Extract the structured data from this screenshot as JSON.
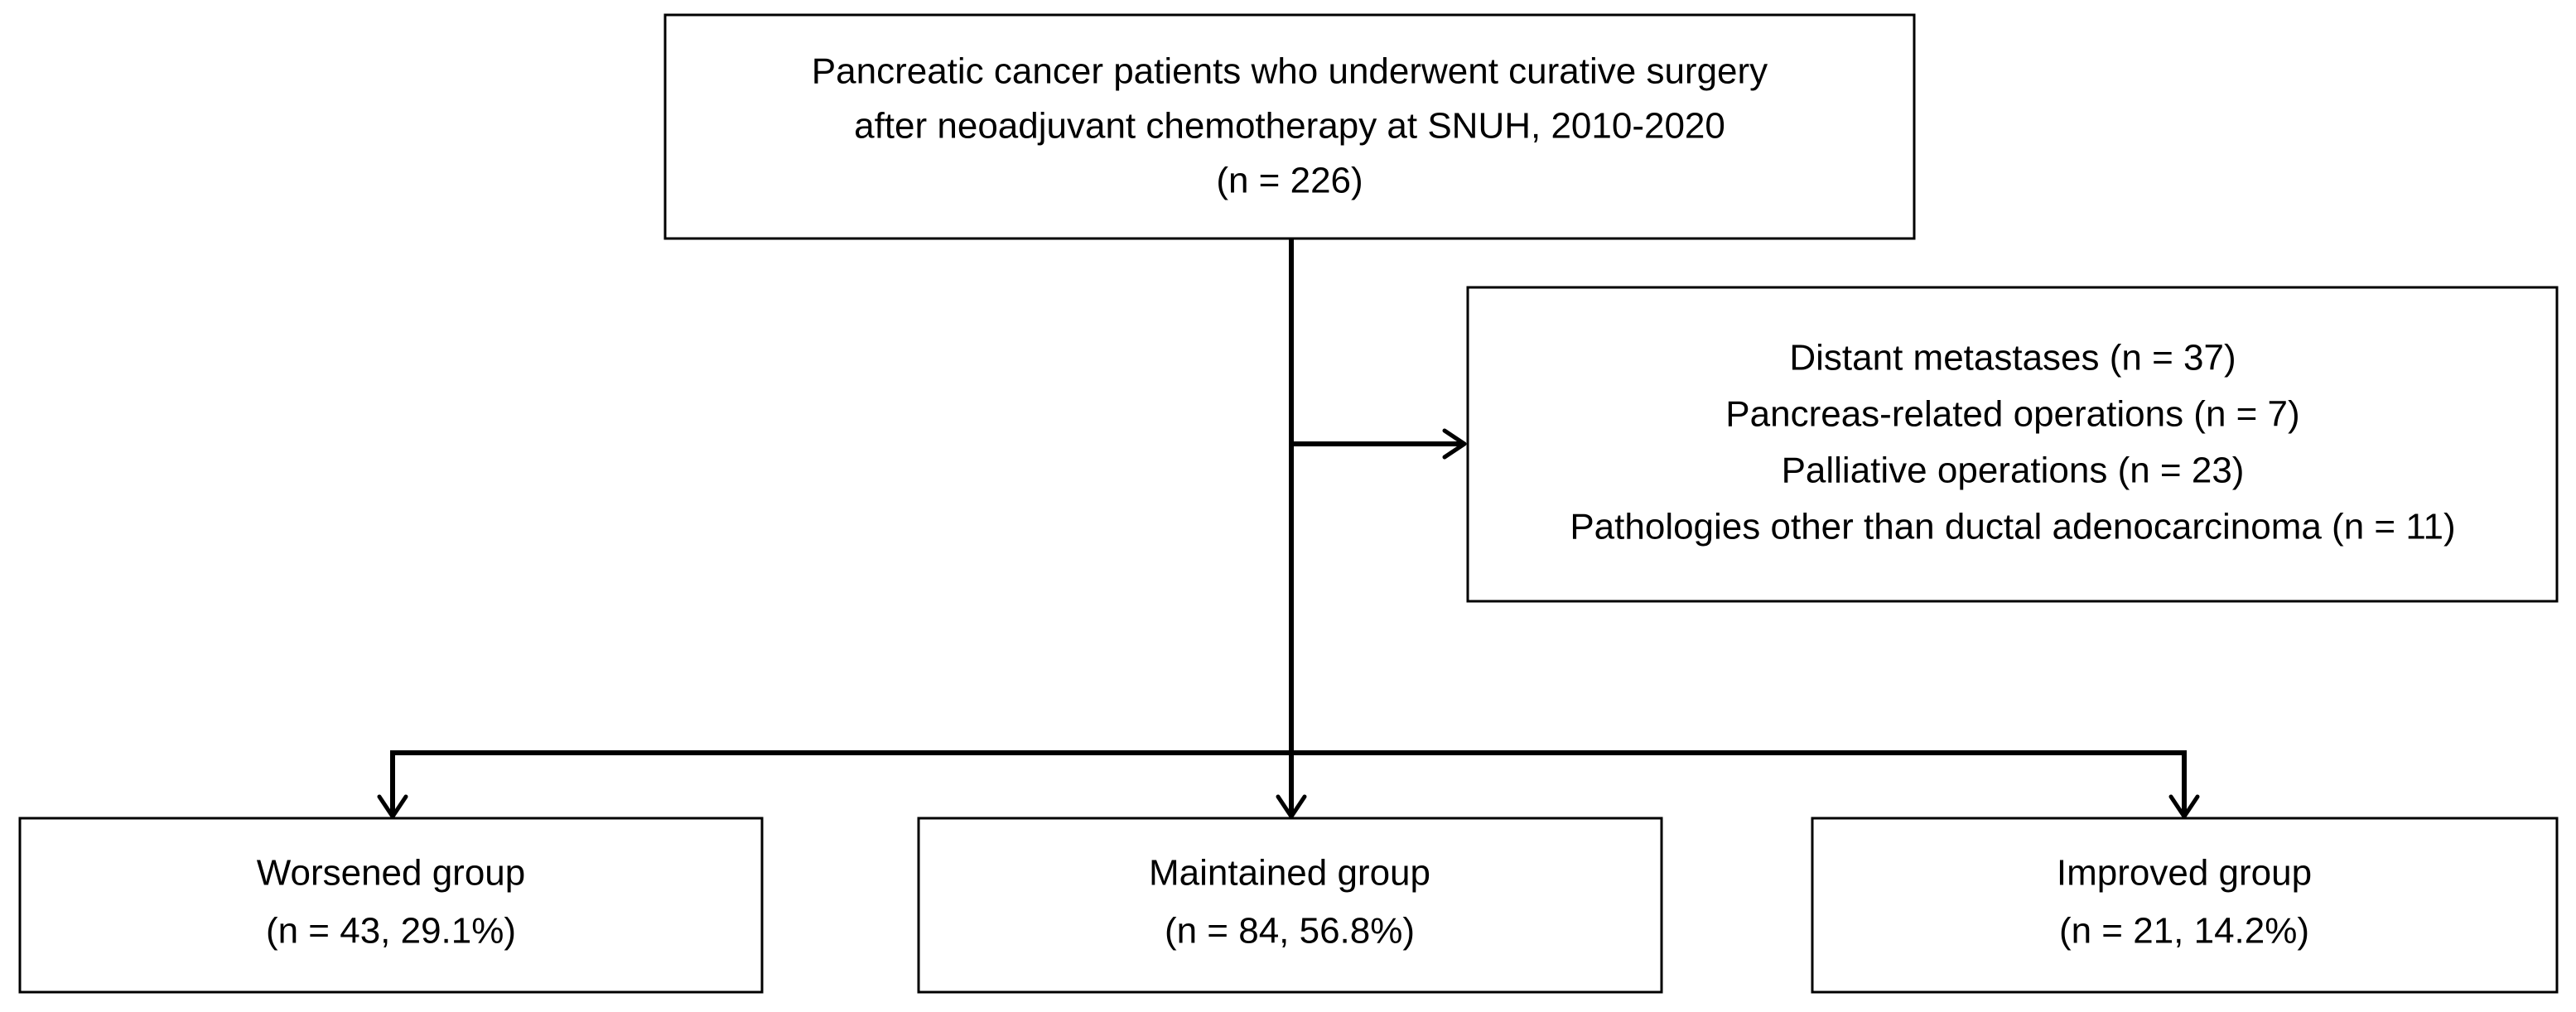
{
  "source": {
    "lines": [
      "Pancreatic cancer patients who underwent curative surgery",
      "after neoadjuvant chemotherapy at SNUH, 2010-2020",
      "(n = 226)"
    ]
  },
  "exclusions": {
    "lines": [
      "Distant metastases (n = 37)",
      "Pancreas-related operations (n = 7)",
      "Palliative operations (n = 23)",
      "Pathologies other than ductal adenocarcinoma (n = 11)"
    ]
  },
  "groups": [
    {
      "lines": [
        "Worsened group",
        "(n = 43, 29.1%)"
      ]
    },
    {
      "lines": [
        "Maintained group",
        "(n = 84, 56.8%)"
      ]
    },
    {
      "lines": [
        "Improved group",
        "(n = 21, 14.2%)"
      ]
    }
  ]
}
